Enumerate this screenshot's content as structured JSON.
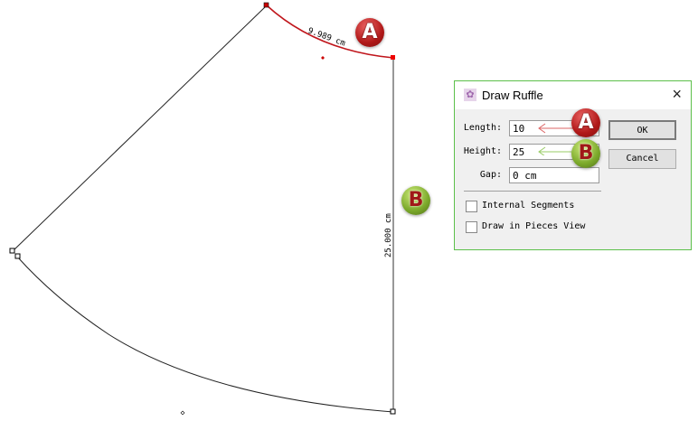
{
  "canvas": {
    "arc_label": "9.989 cm",
    "height_label": "25.000 cm",
    "highlight_color": "#c0161c",
    "line_color": "#222222"
  },
  "badges": {
    "a": "A",
    "b": "B"
  },
  "dialog": {
    "title": "Draw Ruffle",
    "close_icon": "×",
    "fields": [
      {
        "label": "Length:",
        "value": "10"
      },
      {
        "label": "Height:",
        "value": "25"
      },
      {
        "label": "Gap:",
        "value": "0 cm"
      }
    ],
    "ok": "OK",
    "cancel": "Cancel",
    "checkboxes": [
      {
        "label": "Internal Segments",
        "checked": false
      },
      {
        "label": "Draw in Pieces View",
        "checked": false
      }
    ]
  }
}
